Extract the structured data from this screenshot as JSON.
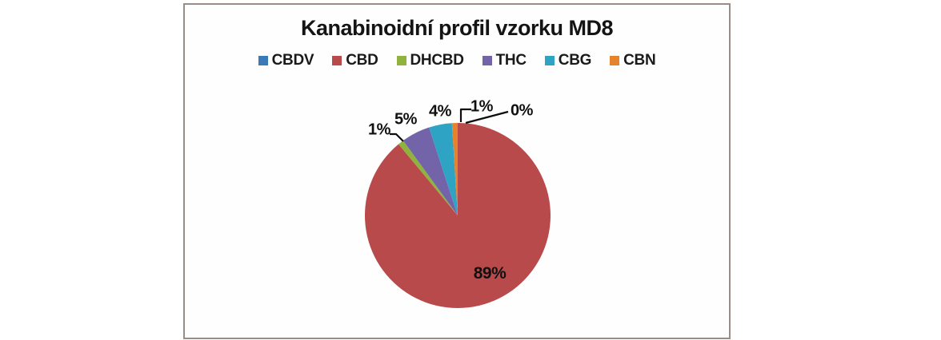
{
  "chart_data": {
    "type": "pie",
    "title": "Kanabinoidní profil vzorku MD8",
    "legend_position": "top",
    "direction": "clockwise",
    "start_angle_deg": 0,
    "slices": [
      {
        "name": "CBDV",
        "value_pct": 0,
        "label": "0%",
        "color": "#3a7ab8"
      },
      {
        "name": "CBD",
        "value_pct": 89,
        "label": "89%",
        "color": "#b94a4b"
      },
      {
        "name": "DHCBD",
        "value_pct": 1,
        "label": "1%",
        "color": "#8fb33d"
      },
      {
        "name": "THC",
        "value_pct": 5,
        "label": "5%",
        "color": "#7363a8"
      },
      {
        "name": "CBG",
        "value_pct": 4,
        "label": "4%",
        "color": "#2ea3c4"
      },
      {
        "name": "CBN",
        "value_pct": 1,
        "label": "1%",
        "color": "#e5822e"
      }
    ]
  }
}
